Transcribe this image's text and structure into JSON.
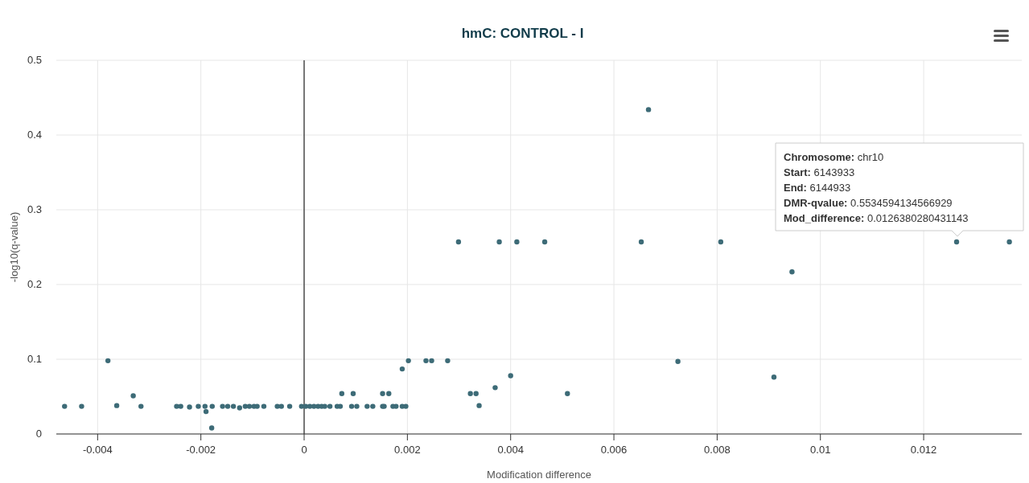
{
  "chart_data": {
    "type": "scatter",
    "title": "hmC: CONTROL - I",
    "xlabel": "Modification difference",
    "ylabel": "-log10(q-value)",
    "xlim": [
      -0.0048,
      0.0139
    ],
    "xticks": [
      -0.004,
      -0.002,
      0,
      0.002,
      0.004,
      0.006,
      0.008,
      0.01,
      0.012
    ],
    "ylim": [
      0,
      0.5
    ],
    "yticks": [
      0,
      0.1,
      0.2,
      0.3,
      0.4,
      0.5
    ],
    "grid": true,
    "marker": "circle",
    "ref_lines": [
      {
        "axis": "x",
        "value": 0,
        "color": "#333333"
      }
    ],
    "annotations": [
      "Chromosome: chr10",
      "Start: 6143933",
      "End: 6144933",
      "DMR-qvalue: 0.5534594134566929",
      "Mod_difference: 0.0126380280431143"
    ],
    "x": [
      -0.00464,
      -0.00431,
      -0.0038,
      -0.00363,
      -0.00331,
      -0.00316,
      -0.00247,
      -0.00239,
      -0.00222,
      -0.00205,
      -0.00192,
      -0.0019,
      -0.00178,
      -0.00179,
      -0.00158,
      -0.00148,
      -0.00137,
      -0.00125,
      -0.00114,
      -0.00106,
      -0.00097,
      -0.00091,
      -0.00078,
      -0.00052,
      -0.00044,
      -0.00028,
      -5e-05,
      3e-05,
      0.00011,
      0.00019,
      0.00027,
      0.00034,
      0.0004,
      0.0005,
      0.00064,
      0.0007,
      0.00073,
      0.00095,
      0.00092,
      0.00102,
      0.00122,
      0.00133,
      0.00152,
      0.00155,
      0.00152,
      0.00164,
      0.00172,
      0.00178,
      0.0019,
      0.00197,
      0.0019,
      0.00202,
      0.00236,
      0.00247,
      0.00278,
      0.00322,
      0.00333,
      0.00339,
      0.0037,
      0.004,
      0.0051,
      0.00724,
      0.0091,
      0.00667,
      0.00299,
      0.00378,
      0.00412,
      0.00466,
      0.00653,
      0.00807,
      0.0126380280431143,
      0.01366,
      0.00945
    ],
    "series": [
      {
        "color": "#3d6b77",
        "values": [
          0.037,
          0.037,
          0.098,
          0.038,
          0.051,
          0.037,
          0.037,
          0.037,
          0.036,
          0.037,
          0.037,
          0.03,
          0.037,
          0.008,
          0.037,
          0.037,
          0.037,
          0.035,
          0.037,
          0.037,
          0.037,
          0.037,
          0.037,
          0.037,
          0.037,
          0.037,
          0.037,
          0.037,
          0.037,
          0.037,
          0.037,
          0.037,
          0.037,
          0.037,
          0.037,
          0.037,
          0.054,
          0.054,
          0.037,
          0.037,
          0.037,
          0.037,
          0.037,
          0.037,
          0.054,
          0.054,
          0.037,
          0.037,
          0.037,
          0.037,
          0.087,
          0.098,
          0.098,
          0.098,
          0.098,
          0.054,
          0.054,
          0.038,
          0.062,
          0.078,
          0.054,
          0.097,
          0.076,
          0.434,
          0.257,
          0.257,
          0.257,
          0.257,
          0.257,
          0.257,
          0.257,
          0.257,
          0.217
        ]
      }
    ]
  }
}
